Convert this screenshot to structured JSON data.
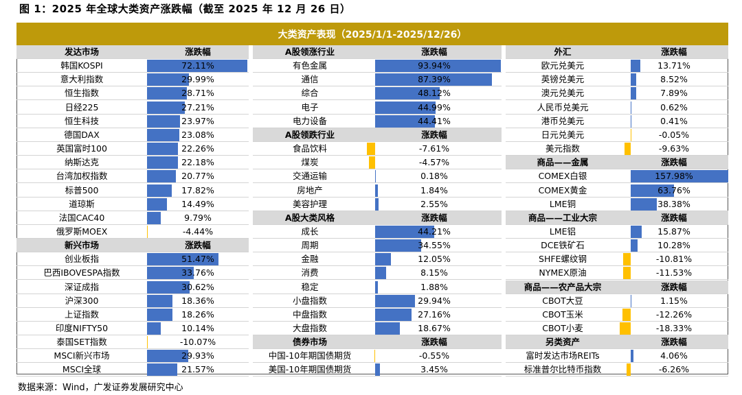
{
  "figure_title": "图 1：2025 年全球大类资产涨跌幅（截至 2025 年 12 月 26 日）",
  "banner_title": "大类资产表现（2025/1/1-2025/12/26）",
  "source": "数据来源：Wind，广发证券发展研究中心",
  "colors": {
    "banner": "#BE9A0B",
    "positive_bar": "#4472C4",
    "negative_bar": "#FFC000",
    "header_bg": "#D9D9D9"
  },
  "chart_data": {
    "type": "table",
    "columns": [
      {
        "rows": [
          {
            "header": true,
            "name": "发达市场",
            "value": "涨跌幅"
          },
          {
            "name": "韩国KOSPI",
            "value": "72.11%",
            "num": 72.11
          },
          {
            "name": "意大利指数",
            "value": "29.99%",
            "num": 29.99
          },
          {
            "name": "恒生指数",
            "value": "28.71%",
            "num": 28.71
          },
          {
            "name": "日经225",
            "value": "27.21%",
            "num": 27.21
          },
          {
            "name": "恒生科技",
            "value": "23.97%",
            "num": 23.97
          },
          {
            "name": "德国DAX",
            "value": "23.08%",
            "num": 23.08
          },
          {
            "name": "英国富时100",
            "value": "22.26%",
            "num": 22.26
          },
          {
            "name": "纳斯达克",
            "value": "22.18%",
            "num": 22.18
          },
          {
            "name": "台湾加权指数",
            "value": "20.77%",
            "num": 20.77
          },
          {
            "name": "标普500",
            "value": "17.82%",
            "num": 17.82
          },
          {
            "name": "道琼斯",
            "value": "14.49%",
            "num": 14.49
          },
          {
            "name": "法国CAC40",
            "value": "9.79%",
            "num": 9.79
          },
          {
            "name": "俄罗斯MOEX",
            "value": "-4.44%",
            "num": -4.44
          },
          {
            "header": true,
            "name": "新兴市场",
            "value": "涨跌幅"
          },
          {
            "name": "创业板指",
            "value": "51.47%",
            "num": 51.47
          },
          {
            "name": "巴西IBOVESPA指数",
            "value": "33.76%",
            "num": 33.76
          },
          {
            "name": "深证成指",
            "value": "30.62%",
            "num": 30.62
          },
          {
            "name": "沪深300",
            "value": "18.36%",
            "num": 18.36
          },
          {
            "name": "上证指数",
            "value": "18.26%",
            "num": 18.26
          },
          {
            "name": "印度NIFTY50",
            "value": "10.14%",
            "num": 10.14
          },
          {
            "name": "泰国SET指数",
            "value": "-10.07%",
            "num": -10.07
          },
          {
            "name": "MSCI新兴市场",
            "value": "29.93%",
            "num": 29.93
          },
          {
            "name": "MSCI全球",
            "value": "21.57%",
            "num": 21.57
          }
        ]
      },
      {
        "rows": [
          {
            "header": true,
            "name": "A股领涨行业",
            "value": "涨跌幅"
          },
          {
            "name": "有色金属",
            "value": "93.94%",
            "num": 93.94
          },
          {
            "name": "通信",
            "value": "87.39%",
            "num": 87.39
          },
          {
            "name": "综合",
            "value": "48.12%",
            "num": 48.12
          },
          {
            "name": "电子",
            "value": "44.99%",
            "num": 44.99
          },
          {
            "name": "电力设备",
            "value": "44.41%",
            "num": 44.41
          },
          {
            "header": true,
            "name": "A股领跌行业",
            "value": "涨跌幅"
          },
          {
            "name": "食品饮料",
            "value": "-7.61%",
            "num": -7.61
          },
          {
            "name": "煤炭",
            "value": "-4.57%",
            "num": -4.57
          },
          {
            "name": "交通运输",
            "value": "0.18%",
            "num": 0.18
          },
          {
            "name": "房地产",
            "value": "1.84%",
            "num": 1.84
          },
          {
            "name": "美容护理",
            "value": "2.55%",
            "num": 2.55
          },
          {
            "header": true,
            "name": "A股大类风格",
            "value": "涨跌幅"
          },
          {
            "name": "成长",
            "value": "44.21%",
            "num": 44.21
          },
          {
            "name": "周期",
            "value": "34.55%",
            "num": 34.55
          },
          {
            "name": "金融",
            "value": "12.05%",
            "num": 12.05
          },
          {
            "name": "消费",
            "value": "8.15%",
            "num": 8.15
          },
          {
            "name": "稳定",
            "value": "1.88%",
            "num": 1.88
          },
          {
            "name": "小盘指数",
            "value": "29.94%",
            "num": 29.94
          },
          {
            "name": "中盘指数",
            "value": "27.16%",
            "num": 27.16
          },
          {
            "name": "大盘指数",
            "value": "18.67%",
            "num": 18.67
          },
          {
            "header": true,
            "name": "债券市场",
            "value": "涨跌幅"
          },
          {
            "name": "中国-10年期国债期货",
            "value": "-0.55%",
            "num": -0.55
          },
          {
            "name": "美国-10年期国债期货",
            "value": "3.45%",
            "num": 3.45
          }
        ]
      },
      {
        "rows": [
          {
            "header": true,
            "name": "外汇",
            "value": "涨跌幅"
          },
          {
            "name": "欧元兑美元",
            "value": "13.71%",
            "num": 13.71
          },
          {
            "name": "英镑兑美元",
            "value": "8.52%",
            "num": 8.52
          },
          {
            "name": "澳元兑美元",
            "value": "7.89%",
            "num": 7.89
          },
          {
            "name": "人民币兑美元",
            "value": "0.62%",
            "num": 0.62
          },
          {
            "name": "港币兑美元",
            "value": "0.41%",
            "num": 0.41
          },
          {
            "name": "日元兑美元",
            "value": "-0.05%",
            "num": -0.05
          },
          {
            "name": "美元指数",
            "value": "-9.63%",
            "num": -9.63
          },
          {
            "header": true,
            "name": "商品——金属",
            "value": "涨跌幅"
          },
          {
            "name": "COMEX白银",
            "value": "157.98%",
            "num": 157.98
          },
          {
            "name": "COMEX黄金",
            "value": "63.76%",
            "num": 63.76
          },
          {
            "name": "LME铜",
            "value": "38.38%",
            "num": 38.38
          },
          {
            "header": true,
            "name": "商品——工业大宗",
            "value": "涨跌幅"
          },
          {
            "name": "LME铝",
            "value": "15.87%",
            "num": 15.87
          },
          {
            "name": "DCE铁矿石",
            "value": "10.28%",
            "num": 10.28
          },
          {
            "name": "SHFE螺纹钢",
            "value": "-10.81%",
            "num": -10.81
          },
          {
            "name": "NYMEX原油",
            "value": "-11.53%",
            "num": -11.53
          },
          {
            "header": true,
            "name": "商品——农产品大宗",
            "value": "涨跌幅"
          },
          {
            "name": "CBOT大豆",
            "value": "1.15%",
            "num": 1.15
          },
          {
            "name": "CBOT玉米",
            "value": "-12.26%",
            "num": -12.26
          },
          {
            "name": "CBOT小麦",
            "value": "-18.33%",
            "num": -18.33
          },
          {
            "header": true,
            "name": "另类资产",
            "value": "涨跌幅"
          },
          {
            "name": "富时发达市场REITs",
            "value": "4.06%",
            "num": 4.06
          },
          {
            "name": "标准普尔比特币指数",
            "value": "-6.26%",
            "num": -6.26
          }
        ]
      }
    ]
  }
}
